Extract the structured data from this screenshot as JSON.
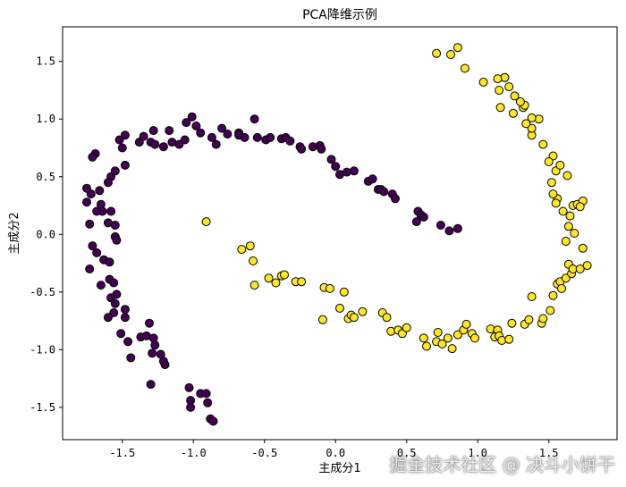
{
  "chart_data": {
    "type": "scatter",
    "title": "PCA降维示例",
    "xlabel": "主成分1",
    "ylabel": "主成分2",
    "xlim": [
      -1.92,
      1.98
    ],
    "ylim": [
      -1.78,
      1.8
    ],
    "xticks": [
      -1.5,
      -1.0,
      -0.5,
      0.0,
      0.5,
      1.0,
      1.5
    ],
    "xtick_labels": [
      "-1.5",
      "-1.0",
      "-0.5",
      "0.0",
      "0.5",
      "1.0",
      "1.5"
    ],
    "yticks": [
      -1.5,
      -1.0,
      -0.5,
      0.0,
      0.5,
      1.0,
      1.5
    ],
    "ytick_labels": [
      "-1.5",
      "-1.0",
      "-0.5",
      "0.0",
      "0.5",
      "1.0",
      "1.5"
    ],
    "grid": false,
    "series": [
      {
        "color": "#440154",
        "points": [
          [
            -1.48,
            0.86
          ],
          [
            -1.52,
            0.82
          ],
          [
            -1.5,
            0.75
          ],
          [
            -1.48,
            0.6
          ],
          [
            -1.55,
            0.55
          ],
          [
            -1.58,
            0.5
          ],
          [
            -1.6,
            0.45
          ],
          [
            -1.66,
            0.38
          ],
          [
            -1.72,
            0.35
          ],
          [
            -1.75,
            0.4
          ],
          [
            -1.75,
            0.28
          ],
          [
            -1.65,
            0.26
          ],
          [
            -1.64,
            0.2
          ],
          [
            -1.58,
            0.2
          ],
          [
            -1.6,
            0.1
          ],
          [
            -1.55,
            0.08
          ],
          [
            -1.55,
            -0.02
          ],
          [
            -1.54,
            -0.05
          ],
          [
            -1.68,
            0.2
          ],
          [
            -1.69,
            0.7
          ],
          [
            -1.71,
            0.67
          ],
          [
            -1.73,
            0.09
          ],
          [
            -1.71,
            -0.1
          ],
          [
            -1.68,
            -0.16
          ],
          [
            -1.63,
            -0.22
          ],
          [
            -1.59,
            -0.24
          ],
          [
            -1.73,
            -0.3
          ],
          [
            -1.65,
            -0.44
          ],
          [
            -1.59,
            -0.39
          ],
          [
            -1.56,
            -0.42
          ],
          [
            -1.54,
            -0.52
          ],
          [
            -1.58,
            -0.55
          ],
          [
            -1.55,
            -0.6
          ],
          [
            -1.56,
            -0.68
          ],
          [
            -1.48,
            -0.65
          ],
          [
            -1.6,
            -0.72
          ],
          [
            -1.48,
            -0.72
          ],
          [
            -1.51,
            -0.86
          ],
          [
            -1.46,
            -0.93
          ],
          [
            -1.44,
            -1.07
          ],
          [
            -1.37,
            -0.89
          ],
          [
            -1.33,
            -0.88
          ],
          [
            -1.31,
            -0.77
          ],
          [
            -1.28,
            -0.9
          ],
          [
            -1.27,
            -0.96
          ],
          [
            -1.29,
            -1.03
          ],
          [
            -1.23,
            -1.04
          ],
          [
            -1.2,
            -1.13
          ],
          [
            -1.21,
            -1.1
          ],
          [
            -1.3,
            -1.3
          ],
          [
            -1.03,
            -1.33
          ],
          [
            -1.02,
            -1.44
          ],
          [
            -0.95,
            -1.38
          ],
          [
            -0.91,
            -1.38
          ],
          [
            -0.9,
            -1.46
          ],
          [
            -0.88,
            -1.6
          ],
          [
            -0.86,
            -1.62
          ],
          [
            -1.02,
            -1.5
          ],
          [
            -1.38,
            0.8
          ],
          [
            -1.35,
            0.85
          ],
          [
            -1.3,
            0.8
          ],
          [
            -1.28,
            0.9
          ],
          [
            -1.27,
            0.78
          ],
          [
            -1.21,
            0.76
          ],
          [
            -1.17,
            0.9
          ],
          [
            -1.15,
            0.8
          ],
          [
            -1.1,
            0.78
          ],
          [
            -1.06,
            0.82
          ],
          [
            -1.01,
            1.02
          ],
          [
            -1.05,
            0.97
          ],
          [
            -0.98,
            0.94
          ],
          [
            -0.95,
            0.88
          ],
          [
            -0.87,
            0.84
          ],
          [
            -0.84,
            0.78
          ],
          [
            -0.8,
            0.92
          ],
          [
            -0.76,
            0.87
          ],
          [
            -0.68,
            0.88
          ],
          [
            -0.68,
            0.86
          ],
          [
            -0.64,
            0.84
          ],
          [
            -0.57,
            1.0
          ],
          [
            -0.55,
            0.84
          ],
          [
            -0.49,
            0.82
          ],
          [
            -0.46,
            0.84
          ],
          [
            -0.38,
            0.83
          ],
          [
            -0.35,
            0.84
          ],
          [
            -0.32,
            0.81
          ],
          [
            -0.25,
            0.76
          ],
          [
            -0.24,
            0.74
          ],
          [
            -0.16,
            0.76
          ],
          [
            -0.11,
            0.77
          ],
          [
            -0.1,
            0.74
          ],
          [
            -0.03,
            0.65
          ],
          [
            0.0,
            0.59
          ],
          [
            0.03,
            0.52
          ],
          [
            0.08,
            0.54
          ],
          [
            0.13,
            0.55
          ],
          [
            0.23,
            0.46
          ],
          [
            0.26,
            0.48
          ],
          [
            0.3,
            0.39
          ],
          [
            0.32,
            0.39
          ],
          [
            0.34,
            0.37
          ],
          [
            0.4,
            0.35
          ],
          [
            0.42,
            0.31
          ],
          [
            0.58,
            0.2
          ],
          [
            0.6,
            0.17
          ],
          [
            0.62,
            0.15
          ],
          [
            0.57,
            0.11
          ],
          [
            0.74,
            0.08
          ],
          [
            0.8,
            0.03
          ],
          [
            0.86,
            0.05
          ]
        ]
      },
      {
        "color": "#fde725",
        "points": [
          [
            -0.91,
            0.11
          ],
          [
            -0.66,
            -0.13
          ],
          [
            -0.6,
            -0.1
          ],
          [
            -0.58,
            -0.23
          ],
          [
            -0.57,
            -0.44
          ],
          [
            -0.47,
            -0.38
          ],
          [
            -0.42,
            -0.42
          ],
          [
            -0.38,
            -0.36
          ],
          [
            -0.36,
            -0.35
          ],
          [
            -0.28,
            -0.41
          ],
          [
            -0.24,
            -0.41
          ],
          [
            -0.08,
            -0.46
          ],
          [
            -0.04,
            -0.47
          ],
          [
            -0.09,
            -0.74
          ],
          [
            0.06,
            -0.5
          ],
          [
            0.03,
            -0.64
          ],
          [
            0.09,
            -0.73
          ],
          [
            0.11,
            -0.7
          ],
          [
            0.13,
            -0.72
          ],
          [
            0.19,
            -0.67
          ],
          [
            0.33,
            -0.68
          ],
          [
            0.36,
            -0.72
          ],
          [
            0.39,
            -0.84
          ],
          [
            0.44,
            -0.83
          ],
          [
            0.47,
            -0.86
          ],
          [
            0.5,
            -0.81
          ],
          [
            0.62,
            -0.9
          ],
          [
            0.64,
            -0.97
          ],
          [
            0.71,
            -0.93
          ],
          [
            0.72,
            -0.85
          ],
          [
            0.75,
            -0.95
          ],
          [
            0.79,
            -0.9
          ],
          [
            0.82,
            -0.99
          ],
          [
            0.86,
            -0.87
          ],
          [
            0.9,
            -0.83
          ],
          [
            0.92,
            -0.78
          ],
          [
            0.96,
            -0.86
          ],
          [
            0.98,
            -0.9
          ],
          [
            1.09,
            -0.82
          ],
          [
            1.12,
            -0.89
          ],
          [
            1.14,
            -0.83
          ],
          [
            1.15,
            -0.88
          ],
          [
            1.17,
            -0.92
          ],
          [
            1.22,
            -0.91
          ],
          [
            1.24,
            -0.77
          ],
          [
            1.33,
            -0.78
          ],
          [
            1.36,
            -0.74
          ],
          [
            1.38,
            -0.54
          ],
          [
            1.45,
            -0.77
          ],
          [
            1.46,
            -0.73
          ],
          [
            1.51,
            -0.66
          ],
          [
            1.53,
            -0.53
          ],
          [
            1.56,
            -0.43
          ],
          [
            1.58,
            -0.41
          ],
          [
            1.59,
            -0.47
          ],
          [
            1.62,
            -0.38
          ],
          [
            1.64,
            -0.26
          ],
          [
            1.66,
            -0.34
          ],
          [
            1.67,
            -0.3
          ],
          [
            1.72,
            -0.3
          ],
          [
            1.77,
            -0.27
          ],
          [
            1.74,
            -0.12
          ],
          [
            1.62,
            -0.06
          ],
          [
            1.68,
            0.01
          ],
          [
            1.64,
            0.07
          ],
          [
            1.65,
            0.16
          ],
          [
            1.67,
            0.25
          ],
          [
            1.7,
            0.26
          ],
          [
            1.74,
            0.29
          ],
          [
            1.72,
            0.24
          ],
          [
            1.6,
            0.2
          ],
          [
            1.56,
            0.31
          ],
          [
            1.53,
            0.35
          ],
          [
            1.52,
            0.45
          ],
          [
            1.55,
            0.55
          ],
          [
            1.58,
            0.6
          ],
          [
            1.53,
            0.68
          ],
          [
            1.46,
            0.78
          ],
          [
            1.38,
            0.86
          ],
          [
            1.38,
            0.92
          ],
          [
            1.43,
            1.0
          ],
          [
            1.38,
            1.01
          ],
          [
            1.32,
            1.1
          ],
          [
            1.33,
            1.12
          ],
          [
            1.3,
            1.15
          ],
          [
            1.26,
            1.2
          ],
          [
            1.22,
            1.28
          ],
          [
            1.19,
            1.36
          ],
          [
            1.19,
            1.36
          ],
          [
            1.15,
            1.25
          ],
          [
            1.14,
            1.35
          ],
          [
            1.16,
            1.1
          ],
          [
            1.25,
            1.05
          ],
          [
            1.34,
            0.96
          ],
          [
            1.04,
            1.32
          ],
          [
            0.91,
            1.44
          ],
          [
            0.86,
            1.62
          ],
          [
            0.81,
            1.56
          ],
          [
            0.71,
            1.57
          ],
          [
            1.55,
            0.27
          ],
          [
            1.63,
            0.51
          ],
          [
            1.5,
            0.63
          ]
        ]
      }
    ]
  },
  "watermark": "掘金技术社区 @ 决斗小饼干"
}
